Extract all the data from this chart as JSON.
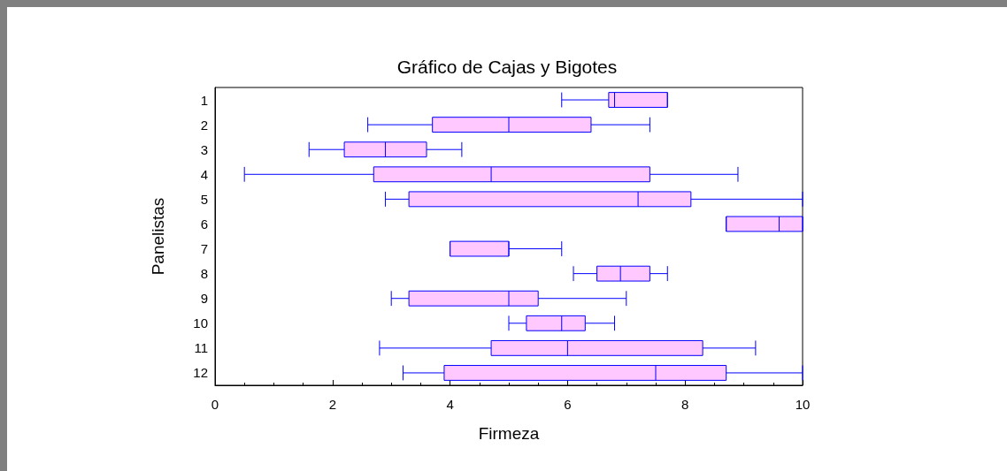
{
  "chart_data": {
    "type": "box",
    "title": "Gráfico de Cajas y Bigotes",
    "xlabel": "Firmeza",
    "ylabel": "Panelistas",
    "orientation": "horizontal",
    "categories": [
      "1",
      "2",
      "3",
      "4",
      "5",
      "6",
      "7",
      "8",
      "9",
      "10",
      "11",
      "12"
    ],
    "series": [
      {
        "color": "#ffc8ff",
        "boxes": [
          {
            "low": 5.9,
            "q1": 6.7,
            "median": 6.8,
            "q3": 7.7,
            "high": 7.7
          },
          {
            "low": 2.6,
            "q1": 3.7,
            "median": 5.0,
            "q3": 6.4,
            "high": 7.4
          },
          {
            "low": 1.6,
            "q1": 2.2,
            "median": 2.9,
            "q3": 3.6,
            "high": 4.2
          },
          {
            "low": 0.5,
            "q1": 2.7,
            "median": 4.7,
            "q3": 7.4,
            "high": 8.9
          },
          {
            "low": 2.9,
            "q1": 3.3,
            "median": 7.2,
            "q3": 8.1,
            "high": 10
          },
          {
            "low": 8.7,
            "q1": 8.7,
            "median": 9.6,
            "q3": 10,
            "high": 10
          },
          {
            "low": 4.0,
            "q1": 4.0,
            "median": 5.0,
            "q3": 5.0,
            "high": 5.9
          },
          {
            "low": 6.1,
            "q1": 6.5,
            "median": 6.9,
            "q3": 7.4,
            "high": 7.7
          },
          {
            "low": 3.0,
            "q1": 3.3,
            "median": 5.0,
            "q3": 5.5,
            "high": 7.0
          },
          {
            "low": 5.0,
            "q1": 5.3,
            "median": 5.9,
            "q3": 6.3,
            "high": 6.8
          },
          {
            "low": 2.8,
            "q1": 4.7,
            "median": 6.0,
            "q3": 8.3,
            "high": 9.2
          },
          {
            "low": 3.2,
            "q1": 3.9,
            "median": 7.5,
            "q3": 8.7,
            "high": 10
          }
        ]
      }
    ],
    "xlim": [
      0,
      10
    ],
    "xticks": [
      0,
      2,
      4,
      6,
      8,
      10
    ],
    "grid": false
  }
}
